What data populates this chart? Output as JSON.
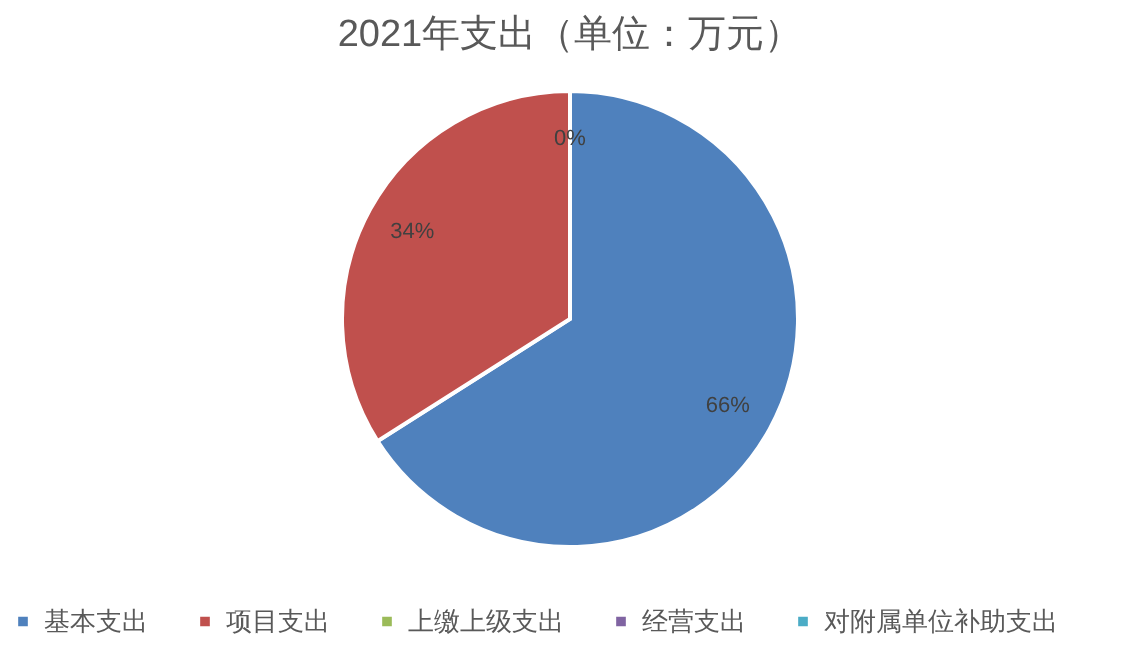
{
  "chart_data": {
    "type": "pie",
    "title": "2021年支出（单位：万元）",
    "categories": [
      "基本支出",
      "项目支出",
      "上缴上级支出",
      "经营支出",
      "对附属单位补助支出"
    ],
    "values": [
      66,
      34,
      0,
      0,
      0
    ],
    "colors": [
      "#4f81bd",
      "#c0504d",
      "#9bbb59",
      "#8064a2",
      "#4bacc6"
    ],
    "value_labels": [
      "66%",
      "34%",
      "0%",
      null,
      null
    ],
    "legend": "bottom"
  }
}
